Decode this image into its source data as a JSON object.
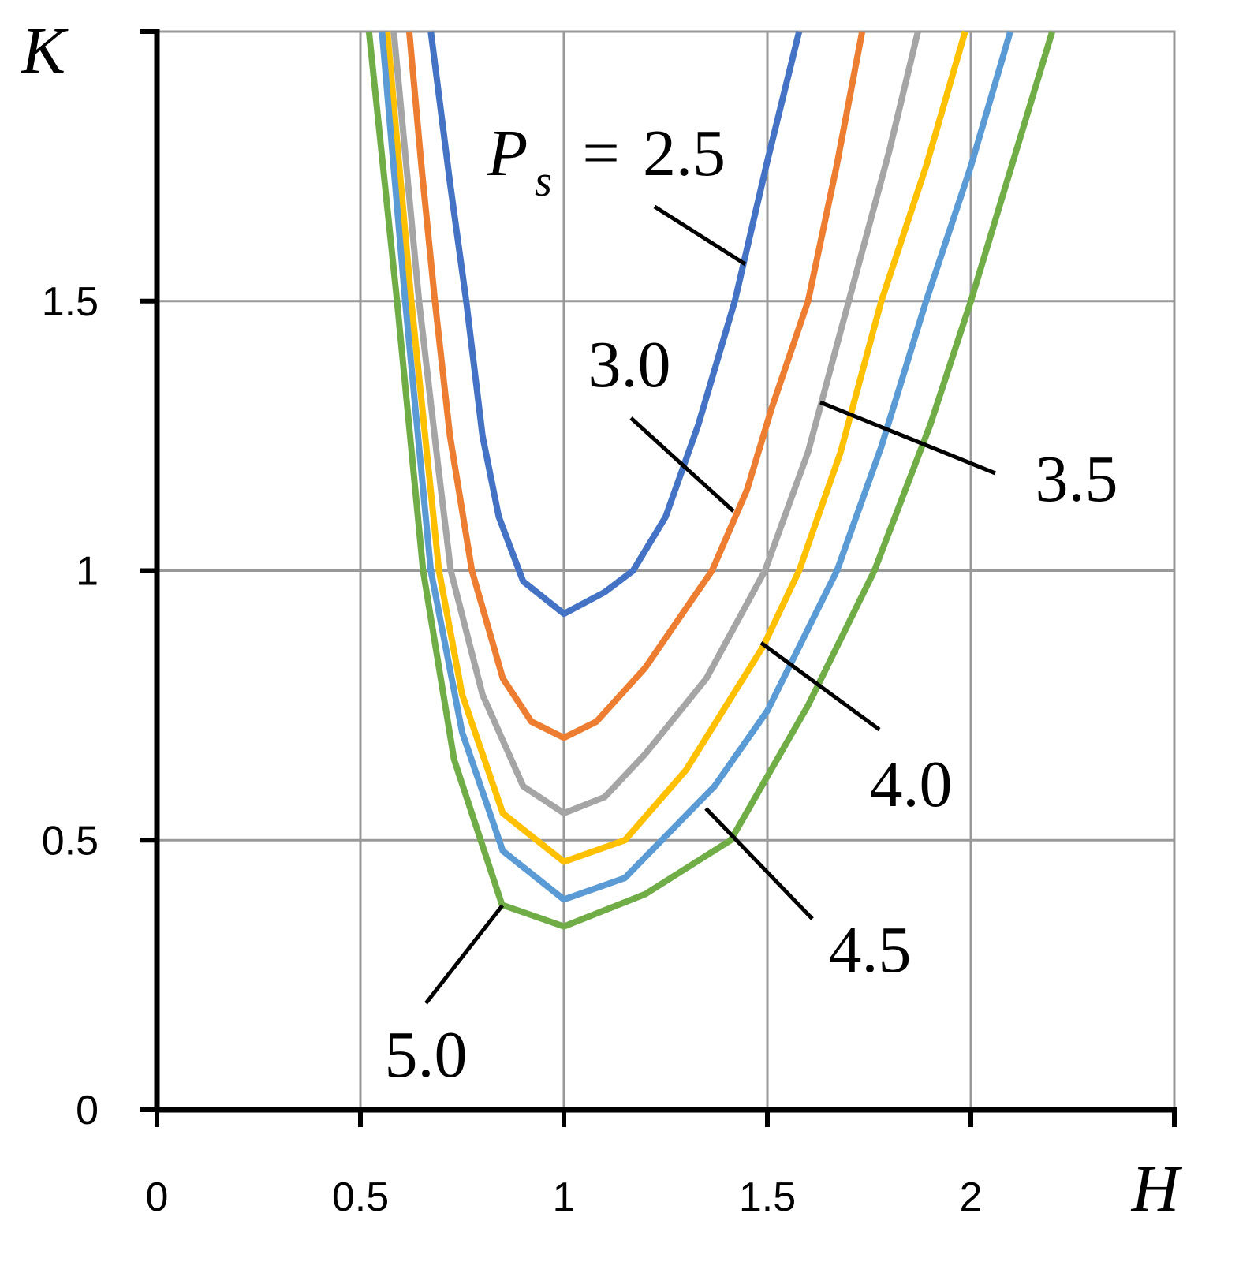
{
  "chart_data": {
    "type": "line",
    "x_label": "H",
    "y_label": "K",
    "label_symbol": {
      "base": "P",
      "subscript": "s",
      "relation": "="
    },
    "xlim": [
      0,
      2.5
    ],
    "ylim": [
      0,
      2
    ],
    "xticks": [
      0,
      0.5,
      1,
      1.5,
      2
    ],
    "yticks": [
      0,
      0.5,
      1,
      1.5
    ],
    "grid": true,
    "series": [
      {
        "name": "2.5",
        "color": "#4472c4",
        "x": [
          0.673,
          0.72,
          0.76,
          0.8,
          0.84,
          0.9,
          1,
          1.1,
          1.17,
          1.25,
          1.33,
          1.42,
          1.5,
          1.578
        ],
        "values": [
          2.0,
          1.72,
          1.5,
          1.25,
          1.1,
          0.98,
          0.92,
          0.96,
          1.0,
          1.1,
          1.27,
          1.5,
          1.76,
          2.0
        ]
      },
      {
        "name": "3.0",
        "color": "#ed7d31",
        "x": [
          0.62,
          0.65,
          0.683,
          0.72,
          0.774,
          0.85,
          0.92,
          1,
          1.08,
          1.2,
          1.3,
          1.364,
          1.45,
          1.51,
          1.6,
          1.67,
          1.733
        ],
        "values": [
          2.0,
          1.75,
          1.5,
          1.25,
          1.0,
          0.8,
          0.72,
          0.69,
          0.72,
          0.82,
          0.93,
          1.0,
          1.15,
          1.3,
          1.5,
          1.75,
          2.0
        ]
      },
      {
        "name": "3.5",
        "color": "#a5a5a5",
        "x": [
          0.582,
          0.644,
          0.69,
          0.722,
          0.8,
          0.9,
          1,
          1.1,
          1.2,
          1.35,
          1.494,
          1.6,
          1.7,
          1.8,
          1.87
        ],
        "values": [
          2.0,
          1.5,
          1.2,
          1.0,
          0.77,
          0.6,
          0.55,
          0.58,
          0.66,
          0.8,
          1.0,
          1.22,
          1.5,
          1.78,
          2.0
        ]
      },
      {
        "name": "4.0",
        "color": "#ffc000",
        "x": [
          0.566,
          0.625,
          0.693,
          0.75,
          0.85,
          1,
          1.15,
          1.3,
          1.49,
          1.578,
          1.68,
          1.78,
          1.89,
          1.986
        ],
        "values": [
          2.0,
          1.5,
          1.0,
          0.77,
          0.55,
          0.46,
          0.5,
          0.63,
          0.86,
          1.0,
          1.22,
          1.5,
          1.75,
          2.0
        ]
      },
      {
        "name": "4.5",
        "color": "#5b9bd5",
        "x": [
          0.553,
          0.61,
          0.673,
          0.75,
          0.85,
          1,
          1.15,
          1.37,
          1.5,
          1.671,
          1.78,
          1.89,
          2.0,
          2.097
        ],
        "values": [
          2.0,
          1.5,
          1.0,
          0.7,
          0.48,
          0.39,
          0.43,
          0.6,
          0.74,
          1.0,
          1.23,
          1.5,
          1.75,
          2.0
        ]
      },
      {
        "name": "5.0",
        "color": "#70ad47",
        "x": [
          0.521,
          0.59,
          0.654,
          0.73,
          0.848,
          1,
          1.2,
          1.41,
          1.6,
          1.763,
          1.9,
          2.0,
          2.1,
          2.2
        ],
        "values": [
          2.0,
          1.5,
          1.0,
          0.65,
          0.38,
          0.34,
          0.4,
          0.5,
          0.75,
          1.0,
          1.27,
          1.5,
          1.75,
          2.0
        ]
      }
    ]
  }
}
